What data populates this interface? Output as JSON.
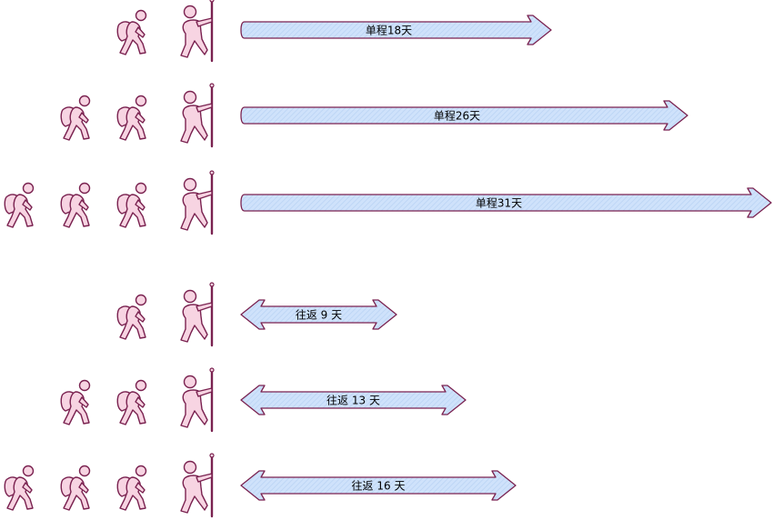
{
  "colors": {
    "arrow_fill": "#cfe2fb",
    "arrow_hatch": "#b9d3f4",
    "arrow_stroke": "#7a2250",
    "hiker_fill": "#f7d4e2",
    "hiker_stroke": "#7a2250",
    "label_color": "#000000"
  },
  "icons": {
    "leader": "hiker-with-staff-icon",
    "follower": "hiker-with-backpack-icon"
  },
  "rows": [
    {
      "arrow_type": "one-way",
      "label": "单程18天",
      "group_size": 2
    },
    {
      "arrow_type": "one-way",
      "label": "单程26天",
      "group_size": 3
    },
    {
      "arrow_type": "one-way",
      "label": "单程31天",
      "group_size": 4
    },
    {
      "arrow_type": "round-trip",
      "label": "往返 9 天",
      "group_size": 2
    },
    {
      "arrow_type": "round-trip",
      "label": "往返 13 天",
      "group_size": 3
    },
    {
      "arrow_type": "round-trip",
      "label": "往返 16 天",
      "group_size": 4
    }
  ]
}
